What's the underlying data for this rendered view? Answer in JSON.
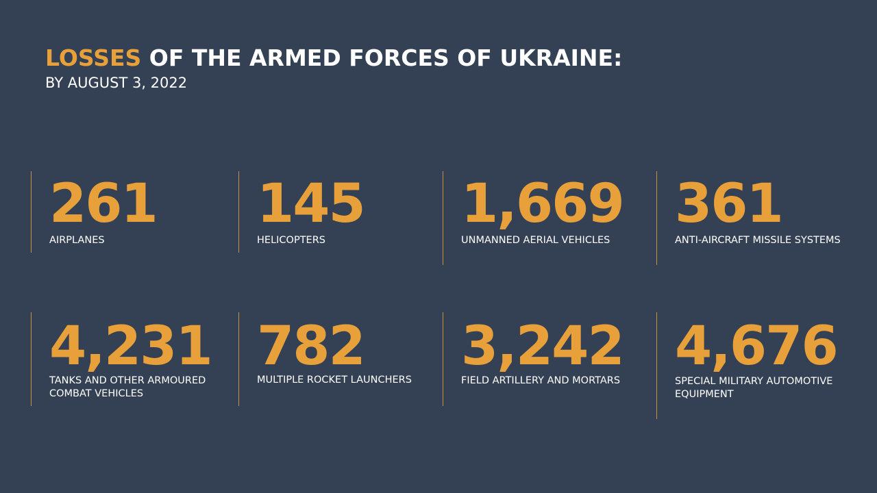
{
  "header": {
    "title_accent": "LOSSES",
    "title_rest": " OF THE ARMED FORCES OF UKRAINE:",
    "subtitle": "BY AUGUST 3, 2022"
  },
  "colors": {
    "background": "#344154",
    "accent": "#e8a13a",
    "divider": "#c8913c",
    "text": "#ffffff"
  },
  "stats": [
    {
      "value": "261",
      "label": "AIRPLANES"
    },
    {
      "value": "145",
      "label": "HELICOPTERS"
    },
    {
      "value": "1,669",
      "label": "UNMANNED AERIAL VEHICLES"
    },
    {
      "value": "361",
      "label": "ANTI-AIRCRAFT MISSILE SYSTEMS"
    },
    {
      "value": "4,231",
      "label": "TANKS AND OTHER ARMOURED COMBAT VEHICLES"
    },
    {
      "value": "782",
      "label": "MULTIPLE ROCKET LAUNCHERS"
    },
    {
      "value": "3,242",
      "label": "FIELD ARTILLERY AND MORTARS"
    },
    {
      "value": "4,676",
      "label": "SPECIAL MILITARY AUTOMOTIVE EQUIPMENT"
    }
  ]
}
